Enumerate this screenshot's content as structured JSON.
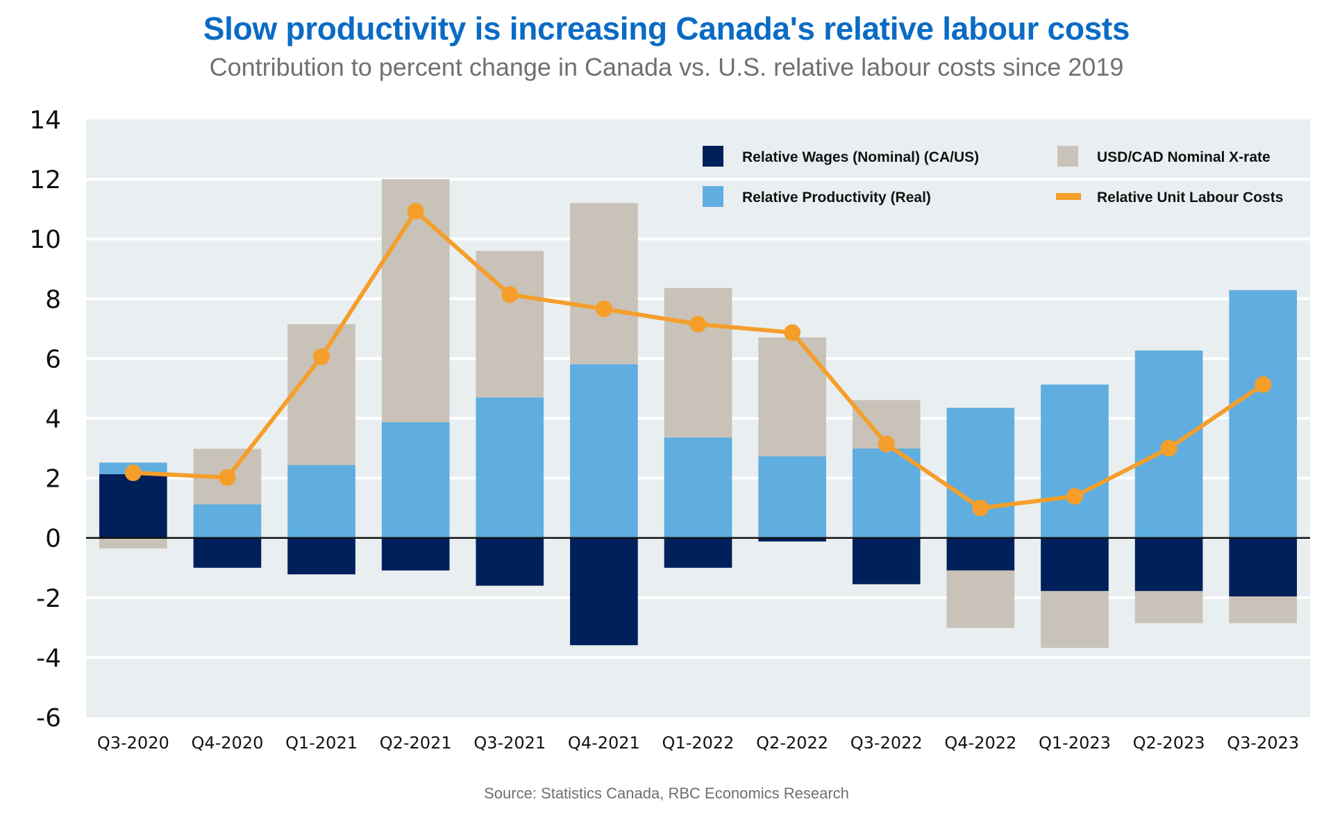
{
  "header": {
    "title": "Slow productivity is increasing Canada's relative labour costs",
    "subtitle": "Contribution to percent change in Canada vs. U.S. relative labour costs since 2019"
  },
  "footer": {
    "source": "Source: Statistics Canada, RBC Economics Research"
  },
  "colors": {
    "wages": "#00205B",
    "productivity": "#5FAEDF",
    "xrate": "#C9C2B8",
    "ulc": "#F59E2A",
    "plot_bg": "#E9EEF1",
    "gridline": "#FFFFFF",
    "zero_line": "#111111"
  },
  "chart_data": {
    "type": "bar",
    "stacked": true,
    "title": "Slow productivity is increasing Canada's relative labour costs",
    "subtitle": "Contribution to percent change in Canada vs. U.S. relative labour costs since 2019",
    "xlabel": "",
    "ylabel": "",
    "ylim": [
      -6,
      14
    ],
    "yticks": [
      14,
      12,
      10,
      8,
      6,
      4,
      2,
      0,
      -2,
      -4,
      -6
    ],
    "grid": true,
    "legend_position": "top-right",
    "categories": [
      "Q3-2020",
      "Q4-2020",
      "Q1-2021",
      "Q2-2021",
      "Q3-2021",
      "Q4-2021",
      "Q1-2022",
      "Q2-2022",
      "Q3-2022",
      "Q4-2022",
      "Q1-2023",
      "Q2-2023",
      "Q3-2023"
    ],
    "series": [
      {
        "name": "Relative Wages (Nominal) (CA/US)",
        "kind": "bar",
        "color_key": "wages",
        "values": [
          2.13,
          -1.0,
          -1.22,
          -1.09,
          -1.6,
          -3.59,
          -1.0,
          -0.12,
          -1.55,
          -1.09,
          -1.78,
          -1.78,
          -1.96
        ]
      },
      {
        "name": "Relative Productivity (Real)",
        "kind": "bar",
        "color_key": "productivity",
        "values": [
          0.39,
          1.12,
          2.44,
          3.87,
          4.7,
          5.81,
          3.36,
          2.73,
          2.99,
          4.35,
          5.13,
          6.27,
          8.29
        ]
      },
      {
        "name": "USD/CAD Nominal X-rate",
        "kind": "bar",
        "color_key": "xrate",
        "values": [
          -0.35,
          1.86,
          4.71,
          8.13,
          4.9,
          5.39,
          5.0,
          3.98,
          1.62,
          -1.92,
          -1.9,
          -1.07,
          -0.89
        ]
      },
      {
        "name": "Relative Unit Labour Costs",
        "kind": "line",
        "color_key": "ulc",
        "values": [
          2.18,
          2.02,
          6.06,
          10.93,
          8.14,
          7.66,
          7.15,
          6.87,
          3.14,
          1.0,
          1.39,
          3.0,
          5.13
        ]
      }
    ],
    "legend": [
      {
        "label": "Relative Wages (Nominal) (CA/US)",
        "color_key": "wages",
        "marker": "square"
      },
      {
        "label": "USD/CAD Nominal X-rate",
        "color_key": "xrate",
        "marker": "square"
      },
      {
        "label": "Relative Productivity (Real)",
        "color_key": "productivity",
        "marker": "square"
      },
      {
        "label": "Relative Unit Labour Costs",
        "color_key": "ulc",
        "marker": "line"
      }
    ]
  }
}
